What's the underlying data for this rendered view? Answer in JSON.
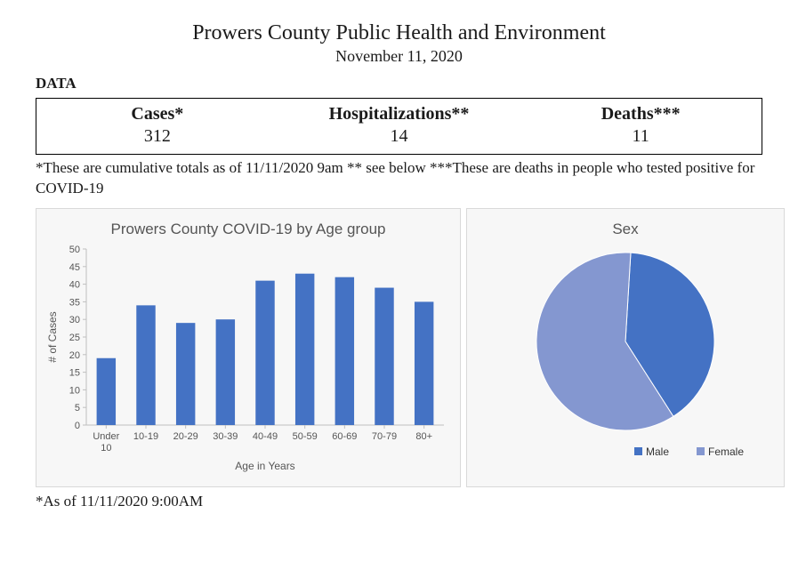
{
  "header": {
    "title": "Prowers County Public Health and Environment",
    "date": "November 11, 2020",
    "section_label": "DATA"
  },
  "stats": {
    "columns": [
      {
        "label": "Cases*",
        "value": "312"
      },
      {
        "label": "Hospitalizations**",
        "value": "14"
      },
      {
        "label": "Deaths***",
        "value": "11"
      }
    ],
    "footnote": "*These are cumulative totals as of 11/11/2020 9am ** see below ***These are deaths in people who tested positive for COVID-19"
  },
  "bar_chart": {
    "type": "bar",
    "title": "Prowers County COVID-19 by Age group",
    "x_label": "Age in Years",
    "y_label": "# of Cases",
    "categories": [
      "Under 10",
      "10-19",
      "20-29",
      "30-39",
      "40-49",
      "50-59",
      "60-69",
      "70-79",
      "80+"
    ],
    "values": [
      19,
      34,
      29,
      30,
      41,
      43,
      42,
      39,
      35
    ],
    "ylim": [
      0,
      50
    ],
    "ytick_step": 5,
    "bar_color": "#4472c4",
    "tick_color": "#bfbfbf",
    "label_color": "#555555",
    "background_color": "#f7f7f7",
    "bar_width_ratio": 0.48
  },
  "pie_chart": {
    "type": "pie",
    "title": "Sex",
    "slices": [
      {
        "label": "Male",
        "value": 40,
        "color": "#4472c4"
      },
      {
        "label": "Female",
        "value": 60,
        "color": "#8497d0"
      }
    ],
    "legend_prefix": "■",
    "background_color": "#f7f7f7"
  },
  "asof": "*As of 11/11/2020 9:00AM"
}
